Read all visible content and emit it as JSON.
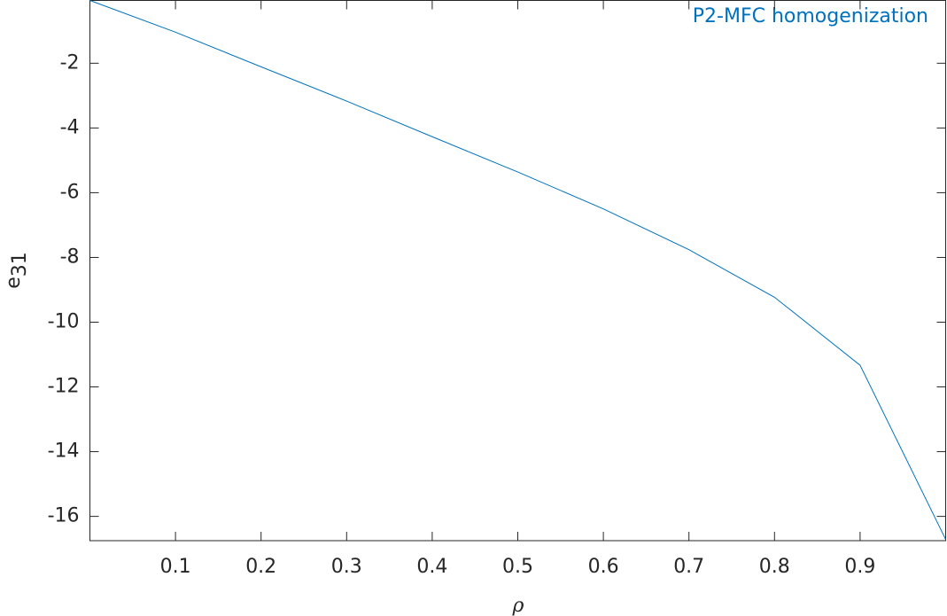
{
  "chart_data": {
    "type": "line",
    "annotation": "P2-MFC homogenization",
    "xlabel": "ρ",
    "ylabel": {
      "base": "e",
      "subscript": "31"
    },
    "x": [
      0,
      0.1,
      0.2,
      0.3,
      0.4,
      0.5,
      0.6,
      0.7,
      0.8,
      0.9,
      1.0
    ],
    "series": [
      {
        "color": "#0072bd",
        "values": [
          -0.06,
          -1.04,
          -2.11,
          -3.17,
          -4.27,
          -5.36,
          -6.5,
          -7.76,
          -9.23,
          -11.33,
          -16.71
        ]
      }
    ],
    "xlim": [
      0,
      1
    ],
    "ylim": [
      -16.75,
      -0.06
    ],
    "xticks": [
      0.1,
      0.2,
      0.3,
      0.4,
      0.5,
      0.6,
      0.7,
      0.8,
      0.9
    ],
    "yticks": [
      -16,
      -14,
      -12,
      -10,
      -8,
      -6,
      -4,
      -2
    ],
    "grid": false
  }
}
